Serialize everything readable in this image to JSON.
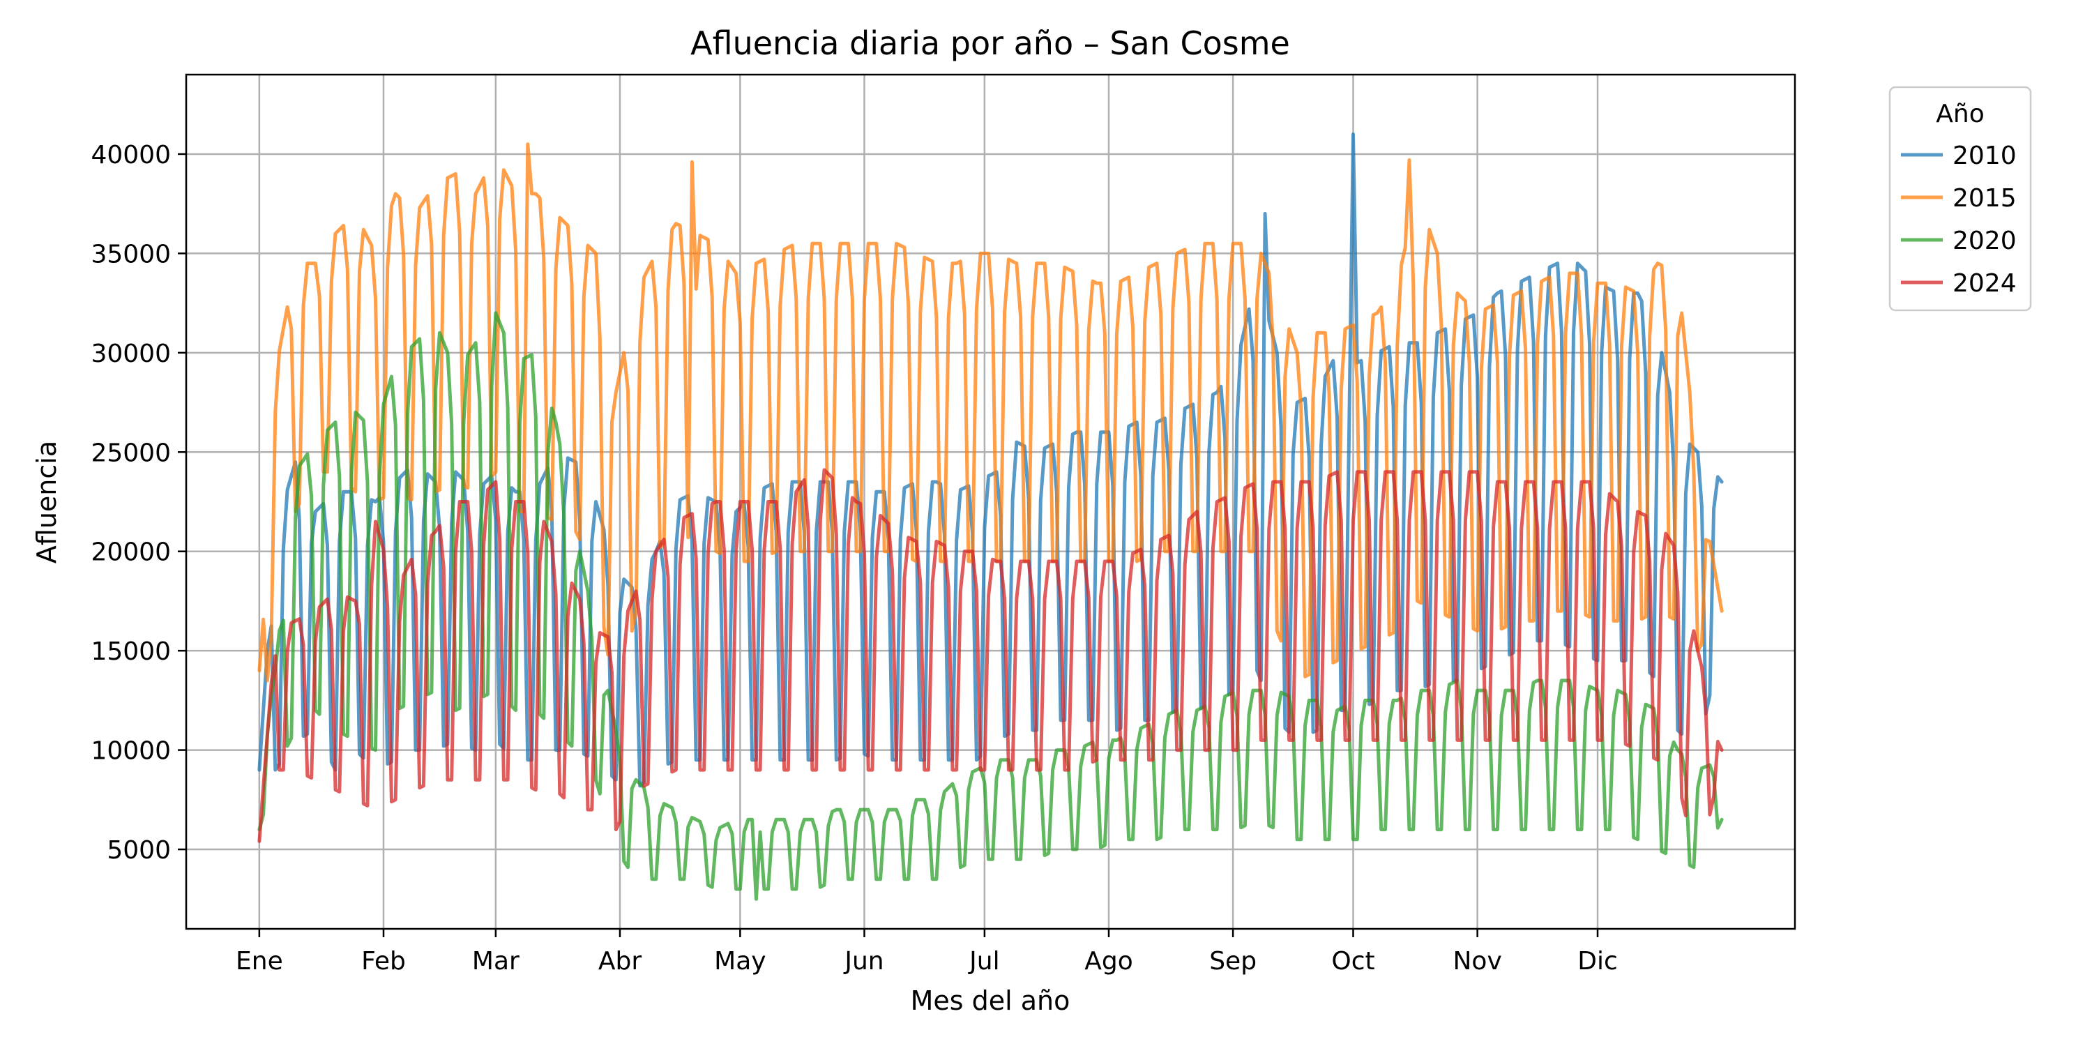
{
  "chart_data": {
    "type": "line",
    "title": "Afluencia diaria por año – San Cosme",
    "xlabel": "Mes del año",
    "ylabel": "Afluencia",
    "x_range_day_of_year": [
      1,
      366
    ],
    "ylim": [
      1000,
      44000
    ],
    "grid": true,
    "legend_title": "Año",
    "legend_position": "outside-top-right",
    "x_ticks": [
      {
        "label": "Ene",
        "day": 1
      },
      {
        "label": "Feb",
        "day": 32
      },
      {
        "label": "Mar",
        "day": 60
      },
      {
        "label": "Abr",
        "day": 91
      },
      {
        "label": "May",
        "day": 121
      },
      {
        "label": "Jun",
        "day": 152
      },
      {
        "label": "Jul",
        "day": 182
      },
      {
        "label": "Ago",
        "day": 213
      },
      {
        "label": "Sep",
        "day": 244
      },
      {
        "label": "Oct",
        "day": 274
      },
      {
        "label": "Nov",
        "day": 305
      },
      {
        "label": "Dic",
        "day": 335
      }
    ],
    "y_ticks": [
      5000,
      10000,
      15000,
      20000,
      25000,
      30000,
      35000,
      40000
    ],
    "series": [
      {
        "name": "2010",
        "color": "#1f77b4",
        "x": [
          1,
          5,
          10,
          15,
          20,
          25,
          30,
          35,
          40,
          45,
          50,
          55,
          60,
          65,
          70,
          75,
          80,
          85,
          90,
          95,
          100,
          105,
          110,
          115,
          120,
          125,
          130,
          135,
          140,
          145,
          150,
          155,
          160,
          165,
          170,
          175,
          180,
          185,
          190,
          195,
          200,
          205,
          210,
          215,
          220,
          225,
          230,
          235,
          240,
          245,
          250,
          255,
          260,
          265,
          270,
          275,
          280,
          285,
          290,
          295,
          300,
          305,
          310,
          315,
          320,
          325,
          330,
          335,
          340,
          345,
          350,
          355,
          360,
          366
        ],
        "weekday_values": [
          9000,
          21000,
          24500,
          22000,
          23000,
          23000,
          22500,
          23500,
          24500,
          23500,
          24000,
          23000,
          24000,
          23000,
          23000,
          25000,
          24500,
          22500,
          19000,
          18000,
          20000,
          22500,
          23000,
          22500,
          22000,
          23000,
          23500,
          23500,
          23500,
          23500,
          23500,
          23000,
          23000,
          23500,
          23500,
          23000,
          23500,
          24000,
          25500,
          25000,
          25500,
          26000,
          26000,
          26000,
          26500,
          26500,
          27000,
          27500,
          28000,
          29500,
          34000,
          30000,
          27500,
          28000,
          30000,
          29500,
          30000,
          30500,
          30500,
          31000,
          31500,
          32000,
          33000,
          33500,
          34000,
          34500,
          34500,
          33500,
          33000,
          33000,
          31000,
          26000,
          25000,
          23500
        ],
        "weekend_values": [
          6000,
          9000,
          10500,
          11000,
          9000,
          10000,
          9000,
          9500,
          10000,
          10000,
          10500,
          10000,
          10500,
          9500,
          9500,
          10000,
          10000,
          9500,
          8500,
          8000,
          9000,
          9500,
          9500,
          9500,
          9500,
          9500,
          9500,
          9500,
          9500,
          9500,
          10000,
          9500,
          9500,
          9500,
          9500,
          9500,
          9500,
          10500,
          11000,
          11000,
          11500,
          11500,
          11500,
          11000,
          11500,
          11500,
          12000,
          12000,
          12500,
          13000,
          14000,
          11500,
          10500,
          11000,
          12000,
          12000,
          12500,
          13000,
          13000,
          13500,
          13500,
          14000,
          14500,
          15000,
          15500,
          15500,
          15000,
          14500,
          14500,
          14500,
          13500,
          11000,
          10000,
          15500
        ],
        "spikes": [
          {
            "day": 274,
            "value": 41000
          },
          {
            "day": 252,
            "value": 37000
          }
        ]
      },
      {
        "name": "2015",
        "color": "#ff7f0e",
        "x": [
          1,
          5,
          10,
          15,
          20,
          25,
          30,
          35,
          40,
          45,
          50,
          55,
          60,
          65,
          70,
          75,
          80,
          85,
          90,
          95,
          100,
          105,
          110,
          115,
          120,
          125,
          130,
          135,
          140,
          145,
          150,
          155,
          160,
          165,
          170,
          175,
          180,
          185,
          190,
          195,
          200,
          205,
          210,
          215,
          220,
          225,
          230,
          235,
          240,
          245,
          250,
          255,
          260,
          265,
          270,
          275,
          280,
          285,
          290,
          295,
          300,
          305,
          310,
          315,
          320,
          325,
          330,
          335,
          340,
          345,
          350,
          355,
          360,
          366
        ],
        "weekday_values": [
          14000,
          29000,
          34500,
          34500,
          36000,
          37000,
          35000,
          38000,
          37000,
          38500,
          39000,
          38000,
          40000,
          38000,
          38000,
          37000,
          36000,
          35000,
          28000,
          33000,
          35000,
          36500,
          36000,
          35500,
          34000,
          34500,
          35000,
          35500,
          35500,
          35500,
          35500,
          35500,
          35500,
          35000,
          34500,
          34500,
          35000,
          35000,
          34500,
          34500,
          34500,
          34000,
          33500,
          33500,
          34000,
          34500,
          35000,
          35500,
          35500,
          35500,
          35500,
          33000,
          30000,
          31000,
          31000,
          31500,
          32000,
          33500,
          38000,
          35000,
          33000,
          32000,
          32500,
          33000,
          33500,
          34000,
          34000,
          33500,
          33500,
          33000,
          34500,
          34000,
          24000,
          17000
        ],
        "weekend_values": [
          9000,
          18000,
          22000,
          24000,
          24000,
          23000,
          22500,
          23000,
          22500,
          23000,
          23500,
          23000,
          24000,
          22000,
          22000,
          21500,
          21000,
          19000,
          12000,
          17000,
          20000,
          21000,
          20500,
          20000,
          19500,
          19500,
          20000,
          20000,
          20000,
          20000,
          20000,
          20000,
          20000,
          19500,
          19500,
          19500,
          19500,
          19500,
          19500,
          19500,
          19500,
          19500,
          19500,
          19500,
          19500,
          20000,
          20000,
          20000,
          20000,
          20000,
          20000,
          16000,
          13500,
          14000,
          14500,
          15000,
          15500,
          16000,
          17500,
          17000,
          16500,
          16000,
          16000,
          16500,
          16500,
          17000,
          17000,
          16500,
          16500,
          16500,
          17000,
          16500,
          15000,
          17000
        ],
        "spikes": [
          {
            "day": 68,
            "value": 40500
          },
          {
            "day": 288,
            "value": 39700
          },
          {
            "day": 109,
            "value": 39600
          }
        ]
      },
      {
        "name": "2020",
        "color": "#2ca02c",
        "x": [
          1,
          5,
          10,
          15,
          20,
          25,
          30,
          35,
          40,
          45,
          50,
          55,
          60,
          65,
          70,
          75,
          80,
          85,
          90,
          95,
          100,
          105,
          110,
          115,
          120,
          125,
          130,
          135,
          140,
          145,
          150,
          155,
          160,
          165,
          170,
          175,
          180,
          185,
          190,
          195,
          200,
          205,
          210,
          215,
          220,
          225,
          230,
          235,
          240,
          245,
          250,
          255,
          260,
          265,
          270,
          275,
          280,
          285,
          290,
          295,
          300,
          305,
          310,
          315,
          320,
          325,
          330,
          335,
          340,
          345,
          350,
          355,
          360,
          366
        ],
        "weekday_values": [
          9000,
          14000,
          24000,
          25500,
          26500,
          27000,
          26000,
          29500,
          30500,
          31500,
          29000,
          30500,
          32000,
          29500,
          30000,
          26500,
          21000,
          16000,
          11000,
          8500,
          7500,
          7000,
          6500,
          6000,
          6500,
          6500,
          6500,
          6500,
          6500,
          7000,
          7000,
          7000,
          7000,
          7500,
          7500,
          8500,
          9000,
          9500,
          9500,
          9500,
          10000,
          10000,
          10500,
          10500,
          11000,
          11500,
          12000,
          12000,
          12500,
          13000,
          13000,
          13000,
          12500,
          12500,
          12000,
          12500,
          12500,
          12500,
          13000,
          13000,
          13500,
          13000,
          13000,
          13000,
          13500,
          13500,
          13500,
          13000,
          13000,
          12500,
          12000,
          10000,
          9000,
          9500
        ],
        "weekend_values": [
          6000,
          9000,
          11000,
          12000,
          11000,
          10500,
          10000,
          12000,
          12500,
          13000,
          12000,
          12500,
          13000,
          12000,
          12000,
          11000,
          10000,
          8500,
          5000,
          3500,
          3500,
          3500,
          3500,
          3000,
          3000,
          3000,
          3000,
          3000,
          3000,
          3500,
          3500,
          3500,
          3500,
          3500,
          3500,
          4000,
          4500,
          4500,
          4500,
          4500,
          5000,
          5000,
          5000,
          5500,
          5500,
          5500,
          6000,
          6000,
          6000,
          6000,
          6500,
          6000,
          5500,
          5500,
          5500,
          5500,
          6000,
          6000,
          6000,
          6000,
          6000,
          6000,
          6000,
          6000,
          6000,
          6000,
          6000,
          6000,
          6000,
          5500,
          5000,
          4500,
          4000,
          6500
        ],
        "spikes": [
          {
            "day": 125,
            "value": 2500
          }
        ]
      },
      {
        "name": "2024",
        "color": "#d62728",
        "x": [
          1,
          5,
          10,
          15,
          20,
          25,
          30,
          35,
          40,
          45,
          50,
          55,
          60,
          65,
          70,
          75,
          80,
          85,
          90,
          95,
          100,
          105,
          110,
          115,
          120,
          125,
          130,
          135,
          140,
          145,
          150,
          155,
          160,
          165,
          170,
          175,
          180,
          185,
          190,
          195,
          200,
          205,
          210,
          215,
          220,
          225,
          230,
          235,
          240,
          245,
          250,
          255,
          260,
          265,
          270,
          275,
          280,
          285,
          290,
          295,
          300,
          305,
          310,
          315,
          320,
          325,
          330,
          335,
          340,
          345,
          350,
          355,
          360,
          366
        ],
        "weekday_values": [
          5500,
          16000,
          16500,
          17000,
          18000,
          17500,
          21500,
          18000,
          20000,
          21000,
          22500,
          22500,
          23500,
          22500,
          22500,
          20000,
          18000,
          16000,
          15500,
          18000,
          20000,
          21500,
          22000,
          22500,
          22500,
          22500,
          22500,
          23000,
          24500,
          23500,
          22500,
          22000,
          21000,
          20500,
          20500,
          20000,
          20000,
          19500,
          19500,
          19500,
          19500,
          19500,
          19500,
          19500,
          20000,
          20500,
          21000,
          22000,
          22500,
          23000,
          23500,
          23500,
          23500,
          23500,
          24000,
          24000,
          24000,
          24000,
          24000,
          24000,
          24000,
          24000,
          23500,
          23500,
          23500,
          23500,
          23500,
          23500,
          22500,
          22000,
          21500,
          20000,
          15000,
          10000
        ],
        "weekend_values": [
          5000,
          9000,
          9000,
          8500,
          8000,
          7500,
          7000,
          7500,
          8000,
          8500,
          8500,
          8500,
          8500,
          8500,
          8000,
          8000,
          7000,
          7000,
          6000,
          8000,
          8500,
          9000,
          9000,
          9000,
          9000,
          9000,
          9000,
          9000,
          9000,
          9000,
          9000,
          9000,
          9000,
          9000,
          9000,
          9000,
          9000,
          9000,
          9000,
          9000,
          9000,
          9000,
          9500,
          9500,
          9500,
          9500,
          10000,
          10000,
          10000,
          10000,
          10500,
          10500,
          10500,
          10500,
          10500,
          10500,
          10500,
          10500,
          10500,
          10500,
          10500,
          10500,
          10500,
          10500,
          10500,
          10500,
          10500,
          10500,
          10500,
          10000,
          9500,
          8500,
          4000,
          9500
        ],
        "spikes": []
      }
    ]
  }
}
